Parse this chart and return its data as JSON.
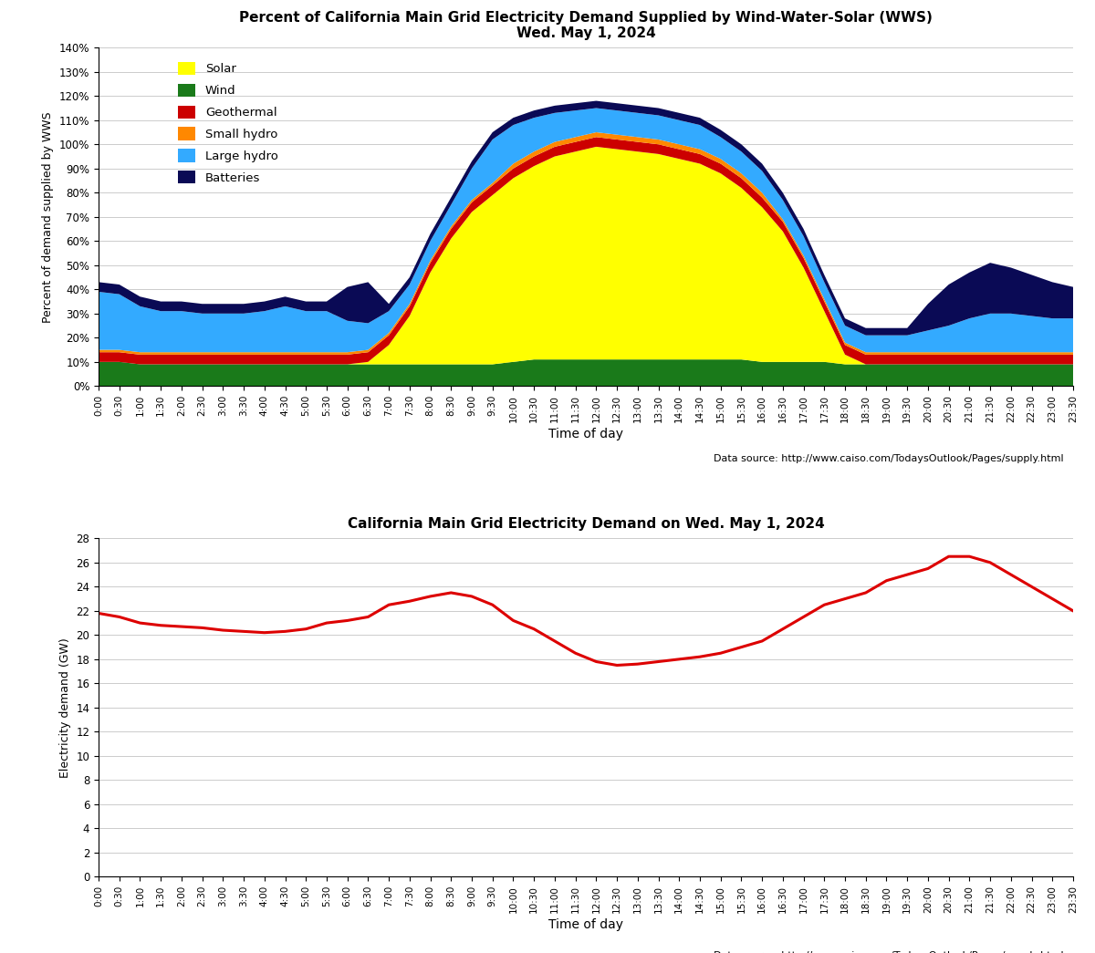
{
  "title1": "Percent of California Main Grid Electricity Demand Supplied by Wind-Water-Solar (WWS)\nWed. May 1, 2024",
  "title2": "California Main Grid Electricity Demand on Wed. May 1, 2024",
  "xlabel": "Time of day",
  "ylabel1": "Percent of demand supplied by WWS",
  "ylabel2": "Electricity demand (GW)",
  "datasource": "Data source: http://www.caiso.com/TodaysOutlook/Pages/supply.html",
  "time_labels": [
    "0:00",
    "0:30",
    "1:00",
    "1:30",
    "2:00",
    "2:30",
    "3:00",
    "3:30",
    "4:00",
    "4:30",
    "5:00",
    "5:30",
    "6:00",
    "6:30",
    "7:00",
    "7:30",
    "8:00",
    "8:30",
    "9:00",
    "9:30",
    "10:00",
    "10:30",
    "11:00",
    "11:30",
    "12:00",
    "12:30",
    "13:00",
    "13:30",
    "14:00",
    "14:30",
    "15:00",
    "15:30",
    "16:00",
    "16:30",
    "17:00",
    "17:30",
    "18:00",
    "18:30",
    "19:00",
    "19:30",
    "20:00",
    "20:30",
    "21:00",
    "21:30",
    "22:00",
    "22:30",
    "23:00",
    "23:30"
  ],
  "wind": [
    10,
    10,
    9,
    9,
    9,
    9,
    9,
    9,
    9,
    9,
    9,
    9,
    9,
    9,
    9,
    9,
    9,
    9,
    9,
    9,
    10,
    11,
    11,
    11,
    11,
    11,
    11,
    11,
    11,
    11,
    11,
    11,
    10,
    10,
    10,
    10,
    9,
    9,
    9,
    9,
    9,
    9,
    9,
    9,
    9,
    9,
    9,
    9
  ],
  "solar": [
    0,
    0,
    0,
    0,
    0,
    0,
    0,
    0,
    0,
    0,
    0,
    0,
    0,
    1,
    8,
    20,
    38,
    52,
    63,
    70,
    76,
    80,
    84,
    86,
    88,
    87,
    86,
    85,
    83,
    81,
    77,
    71,
    64,
    54,
    39,
    21,
    4,
    0,
    0,
    0,
    0,
    0,
    0,
    0,
    0,
    0,
    0,
    0
  ],
  "geothermal": [
    4,
    4,
    4,
    4,
    4,
    4,
    4,
    4,
    4,
    4,
    4,
    4,
    4,
    4,
    4,
    4,
    4,
    4,
    4,
    4,
    4,
    4,
    4,
    4,
    4,
    4,
    4,
    4,
    4,
    4,
    4,
    4,
    4,
    4,
    4,
    4,
    4,
    4,
    4,
    4,
    4,
    4,
    4,
    4,
    4,
    4,
    4,
    4
  ],
  "small_hydro": [
    1,
    1,
    1,
    1,
    1,
    1,
    1,
    1,
    1,
    1,
    1,
    1,
    1,
    1,
    1,
    1,
    1,
    1,
    1,
    1,
    2,
    2,
    2,
    2,
    2,
    2,
    2,
    2,
    2,
    2,
    2,
    2,
    2,
    1,
    1,
    1,
    1,
    1,
    1,
    1,
    1,
    1,
    1,
    1,
    1,
    1,
    1,
    1
  ],
  "large_hydro": [
    24,
    23,
    19,
    17,
    17,
    16,
    16,
    16,
    17,
    19,
    17,
    17,
    13,
    11,
    9,
    8,
    8,
    9,
    13,
    18,
    16,
    14,
    12,
    11,
    10,
    10,
    10,
    10,
    10,
    10,
    9,
    9,
    9,
    8,
    8,
    7,
    7,
    7,
    7,
    7,
    9,
    11,
    14,
    16,
    16,
    15,
    14,
    14
  ],
  "batteries": [
    4,
    4,
    4,
    4,
    4,
    4,
    4,
    4,
    4,
    4,
    4,
    4,
    14,
    17,
    3,
    3,
    3,
    3,
    3,
    3,
    3,
    3,
    3,
    3,
    3,
    3,
    3,
    3,
    3,
    3,
    3,
    3,
    3,
    3,
    3,
    3,
    3,
    3,
    3,
    3,
    11,
    17,
    19,
    21,
    19,
    17,
    15,
    13
  ],
  "demand_gw": [
    21.8,
    21.5,
    21.0,
    20.8,
    20.7,
    20.6,
    20.4,
    20.3,
    20.2,
    20.3,
    20.5,
    21.0,
    21.2,
    21.5,
    22.5,
    22.8,
    23.2,
    23.5,
    23.2,
    22.5,
    21.2,
    20.5,
    19.5,
    18.5,
    17.8,
    17.5,
    17.6,
    17.8,
    18.0,
    18.2,
    18.5,
    19.0,
    19.5,
    20.5,
    21.5,
    22.5,
    23.0,
    23.5,
    24.5,
    25.0,
    25.5,
    26.5,
    26.5,
    26.0,
    25.0,
    24.0,
    23.0,
    22.0
  ],
  "colors": {
    "wind": "#1a7a1a",
    "solar": "#FFFF00",
    "geothermal": "#cc0000",
    "small_hydro": "#ff8800",
    "large_hydro": "#33aaff",
    "batteries": "#0a0a55",
    "demand_line": "#dd0000"
  },
  "stack_order_keys": [
    "wind",
    "solar",
    "geothermal",
    "small_hydro",
    "large_hydro",
    "batteries"
  ],
  "legend_labels": [
    "Solar",
    "Wind",
    "Geothermal",
    "Small hydro",
    "Large hydro",
    "Batteries"
  ],
  "legend_color_keys": [
    "solar",
    "wind",
    "geothermal",
    "small_hydro",
    "large_hydro",
    "batteries"
  ]
}
